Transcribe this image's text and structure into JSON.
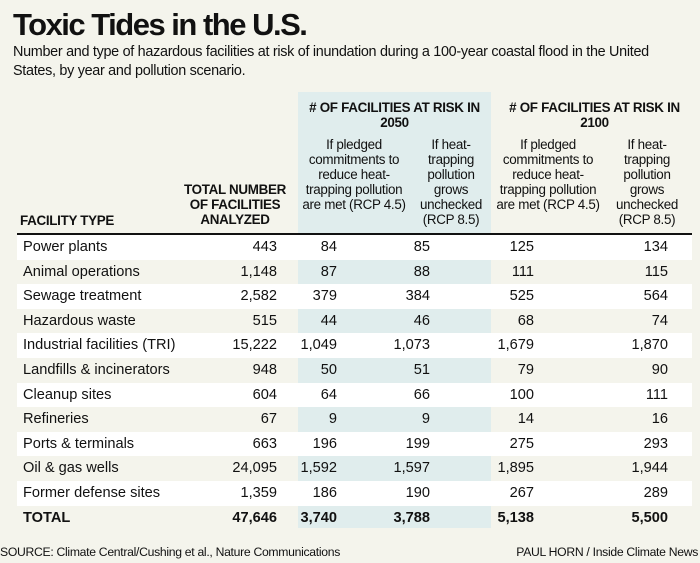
{
  "title": "Toxic Tides in the U.S.",
  "subtitle": "Number and type of hazardous facilities at risk of inundation during a 100-year coastal flood in the United States, by year and pollution scenario.",
  "colors": {
    "background": "#f4f4ec",
    "row_alt": "#ffffff",
    "highlight_2050": "#e4f1f6",
    "text": "#111111"
  },
  "table": {
    "headers": {
      "facility_type": "FACILITY TYPE",
      "total": "TOTAL NUMBER OF FACILITIES ANALYZED",
      "group_2050": "# OF FACILITIES AT RISK IN 2050",
      "group_2100": "# OF FACILITIES AT RISK IN 2100",
      "rcp45": "If pledged commitments to reduce heat-trapping pollution are met (RCP 4.5)",
      "rcp85": "If heat-trapping pollution grows unchecked (RCP 8.5)"
    },
    "rows": [
      {
        "type": "Power plants",
        "total": "443",
        "y2050_rcp45": "84",
        "y2050_rcp85": "85",
        "y2100_rcp45": "125",
        "y2100_rcp85": "134"
      },
      {
        "type": "Animal operations",
        "total": "1,148",
        "y2050_rcp45": "87",
        "y2050_rcp85": "88",
        "y2100_rcp45": "111",
        "y2100_rcp85": "115"
      },
      {
        "type": "Sewage treatment",
        "total": "2,582",
        "y2050_rcp45": "379",
        "y2050_rcp85": "384",
        "y2100_rcp45": "525",
        "y2100_rcp85": "564"
      },
      {
        "type": "Hazardous waste",
        "total": "515",
        "y2050_rcp45": "44",
        "y2050_rcp85": "46",
        "y2100_rcp45": "68",
        "y2100_rcp85": "74"
      },
      {
        "type": "Industrial facilities (TRI)",
        "total": "15,222",
        "y2050_rcp45": "1,049",
        "y2050_rcp85": "1,073",
        "y2100_rcp45": "1,679",
        "y2100_rcp85": "1,870"
      },
      {
        "type": "Landfills & incinerators",
        "total": "948",
        "y2050_rcp45": "50",
        "y2050_rcp85": "51",
        "y2100_rcp45": "79",
        "y2100_rcp85": "90"
      },
      {
        "type": "Cleanup sites",
        "total": "604",
        "y2050_rcp45": "64",
        "y2050_rcp85": "66",
        "y2100_rcp45": "100",
        "y2100_rcp85": "111"
      },
      {
        "type": "Refineries",
        "total": "67",
        "y2050_rcp45": "9",
        "y2050_rcp85": "9",
        "y2100_rcp45": "14",
        "y2100_rcp85": "16"
      },
      {
        "type": "Ports & terminals",
        "total": "663",
        "y2050_rcp45": "196",
        "y2050_rcp85": "199",
        "y2100_rcp45": "275",
        "y2100_rcp85": "293"
      },
      {
        "type": "Oil & gas wells",
        "total": "24,095",
        "y2050_rcp45": "1,592",
        "y2050_rcp85": "1,597",
        "y2100_rcp45": "1,895",
        "y2100_rcp85": "1,944"
      },
      {
        "type": "Former defense sites",
        "total": "1,359",
        "y2050_rcp45": "186",
        "y2050_rcp85": "190",
        "y2100_rcp45": "267",
        "y2100_rcp85": "289"
      }
    ],
    "total_row": {
      "type": "TOTAL",
      "total": "47,646",
      "y2050_rcp45": "3,740",
      "y2050_rcp85": "3,788",
      "y2100_rcp45": "5,138",
      "y2100_rcp85": "5,500"
    }
  },
  "source": "SOURCE: Climate Central/Cushing et al., Nature Communications",
  "credit": "PAUL HORN / Inside Climate News"
}
